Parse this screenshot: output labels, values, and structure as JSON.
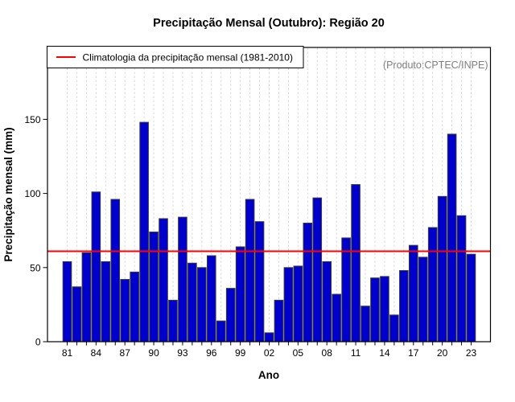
{
  "watermark": "(Produto:CPTEC/INPE)",
  "legend": {
    "label": "Climatologia da precipitação mensal (1981-2010)"
  },
  "chart_data": {
    "type": "bar",
    "title": "Precipitação Mensal (Outubro): Região 20",
    "xlabel": "Ano",
    "ylabel": "Precipitação mensal (mm)",
    "categories": [
      "81",
      "82",
      "83",
      "84",
      "85",
      "86",
      "87",
      "88",
      "89",
      "90",
      "91",
      "92",
      "93",
      "94",
      "95",
      "96",
      "97",
      "98",
      "99",
      "00",
      "01",
      "02",
      "03",
      "04",
      "05",
      "06",
      "07",
      "08",
      "09",
      "10",
      "11",
      "12",
      "13",
      "14",
      "15",
      "16",
      "17",
      "18",
      "19",
      "20",
      "21",
      "22",
      "23"
    ],
    "values": [
      54,
      37,
      60,
      101,
      54,
      96,
      42,
      47,
      148,
      74,
      83,
      28,
      84,
      53,
      50,
      58,
      14,
      36,
      64,
      96,
      81,
      6,
      28,
      50,
      51,
      80,
      97,
      54,
      32,
      70,
      106,
      24,
      43,
      44,
      18,
      48,
      65,
      57,
      77,
      98,
      140,
      85,
      59
    ],
    "x_tick_step": 3,
    "yticks": [
      0,
      50,
      100,
      150
    ],
    "ylim": [
      0,
      198.5
    ],
    "grid": "vertical-dashed",
    "legend_position": "top-left",
    "bar_color": "#0000CD",
    "bar_border_color": "#3A3A3A",
    "grid_color": "#D9D9D9",
    "axis_color": "#000000",
    "climatology": {
      "value": 61,
      "color": "#FF0000"
    }
  }
}
